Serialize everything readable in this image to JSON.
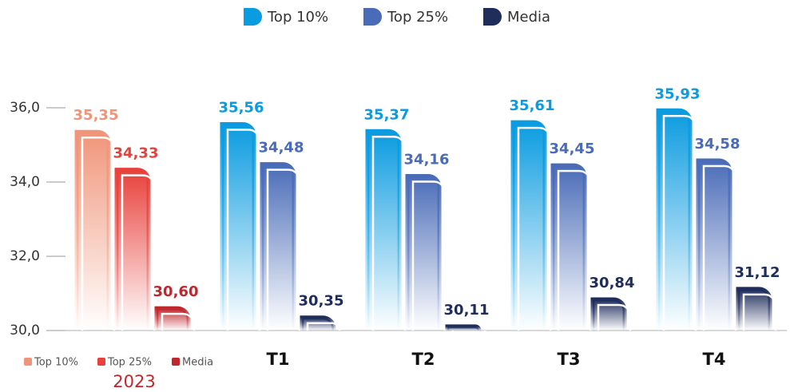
{
  "chart_data": {
    "type": "bar",
    "categories": [
      "2023",
      "T1",
      "T2",
      "T3",
      "T4"
    ],
    "series": [
      {
        "name": "Top 10%",
        "color": "#0a9be0",
        "first_color": "#f0957a",
        "values": [
          35.35,
          35.56,
          35.37,
          35.61,
          35.93
        ],
        "value_labels": [
          "35,35",
          "35,56",
          "35,37",
          "35,61",
          "35,93"
        ]
      },
      {
        "name": "Top 25%",
        "color": "#4a6cb8",
        "first_color": "#e8413c",
        "values": [
          34.33,
          34.48,
          34.16,
          34.45,
          34.58
        ],
        "value_labels": [
          "34,33",
          "34,48",
          "34,16",
          "34,45",
          "34,58"
        ]
      },
      {
        "name": "Media",
        "color": "#1f2d5c",
        "first_color": "#c0272d",
        "values": [
          30.6,
          30.35,
          30.11,
          30.84,
          31.12
        ],
        "value_labels": [
          "30,60",
          "30,35",
          "30,11",
          "30,84",
          "31,12"
        ]
      }
    ],
    "first_category_color": "#c0272d",
    "ylim": [
      30,
      36
    ],
    "yticks": [
      {
        "value": 30,
        "label": "30,0"
      },
      {
        "value": 32,
        "label": "32,0"
      },
      {
        "value": 34,
        "label": "34,0"
      },
      {
        "value": 36,
        "label": "36,0"
      }
    ],
    "grid": false,
    "legend": "top"
  }
}
